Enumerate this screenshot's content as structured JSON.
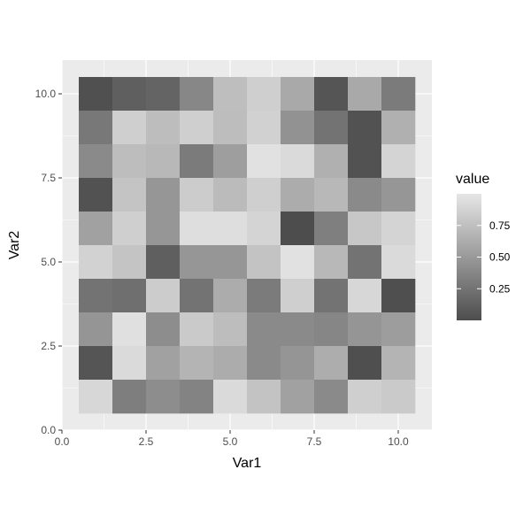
{
  "chart_data": {
    "type": "heatmap",
    "title": "",
    "xlabel": "Var1",
    "ylabel": "Var2",
    "xlim": [
      0,
      11
    ],
    "ylim": [
      0,
      11
    ],
    "x_ticks": [
      0,
      2.5,
      5,
      7.5,
      10
    ],
    "x_tick_labels": [
      "0.0",
      "2.5",
      "5.0",
      "7.5",
      "10.0"
    ],
    "y_ticks": [
      0,
      2.5,
      5,
      7.5,
      10
    ],
    "y_tick_labels": [
      "0.0",
      "2.5",
      "5.0",
      "7.5",
      "10.0"
    ],
    "grid": true,
    "x": [
      1,
      2,
      3,
      4,
      5,
      6,
      7,
      8,
      9,
      10
    ],
    "y": [
      1,
      2,
      3,
      4,
      5,
      6,
      7,
      8,
      9,
      10
    ],
    "values_by_row_top_to_bottom": [
      [
        0.02,
        0.12,
        0.15,
        0.38,
        0.74,
        0.85,
        0.6,
        0.05,
        0.6,
        0.3
      ],
      [
        0.28,
        0.85,
        0.73,
        0.85,
        0.73,
        0.86,
        0.45,
        0.25,
        0.03,
        0.65
      ],
      [
        0.4,
        0.73,
        0.7,
        0.3,
        0.53,
        0.97,
        0.92,
        0.65,
        0.03,
        0.88
      ],
      [
        0.03,
        0.78,
        0.48,
        0.83,
        0.72,
        0.85,
        0.62,
        0.7,
        0.4,
        0.48
      ],
      [
        0.55,
        0.85,
        0.48,
        0.95,
        0.95,
        0.88,
        0.0,
        0.33,
        0.8,
        0.88
      ],
      [
        0.87,
        0.78,
        0.12,
        0.48,
        0.48,
        0.77,
        0.97,
        0.7,
        0.25,
        0.92
      ],
      [
        0.25,
        0.22,
        0.83,
        0.25,
        0.62,
        0.3,
        0.85,
        0.25,
        0.9,
        0.01
      ],
      [
        0.47,
        0.96,
        0.42,
        0.82,
        0.73,
        0.4,
        0.4,
        0.37,
        0.47,
        0.52
      ],
      [
        0.05,
        0.92,
        0.55,
        0.67,
        0.62,
        0.4,
        0.47,
        0.63,
        0.01,
        0.67
      ],
      [
        0.9,
        0.32,
        0.42,
        0.35,
        0.92,
        0.77,
        0.55,
        0.4,
        0.85,
        0.82
      ]
    ],
    "legend": {
      "title": "value",
      "position": "right",
      "breaks": [
        0.25,
        0.5,
        0.75
      ],
      "labels": [
        "0.25",
        "0.50",
        "0.75"
      ],
      "range": [
        0,
        1
      ],
      "low_color": "#4d4d4d",
      "high_color": "#e6e6e6"
    },
    "panel_background": "#ebebeb",
    "grid_color": "#ffffff"
  }
}
